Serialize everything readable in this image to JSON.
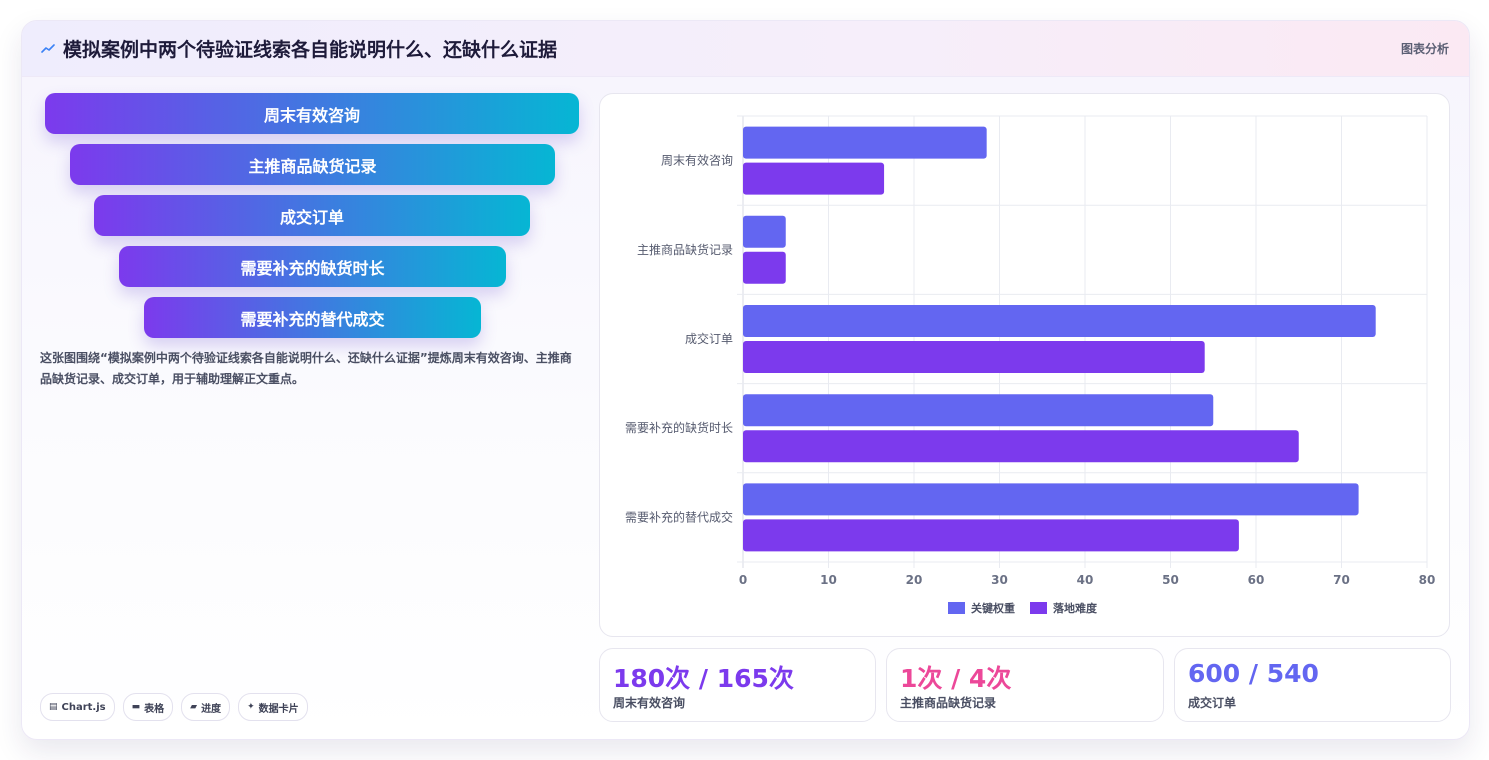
{
  "header": {
    "icon": "trend-line-icon",
    "title": "模拟案例中两个待验证线索各自能说明什么、还缺什么证据",
    "tag": "图表分析"
  },
  "funnel": {
    "items": [
      "周末有效咨询",
      "主推商品缺货记录",
      "成交订单",
      "需要补充的缺货时长",
      "需要补充的替代成交"
    ],
    "gradient": [
      "#7c3aed",
      "#06b6d4"
    ]
  },
  "caption": "这张图围绕“模拟案例中两个待验证线索各自能说明什么、还缺什么证据”提炼周末有效咨询、主推商品缺货记录、成交订单，用于辅助理解正文重点。",
  "badges": [
    {
      "icon": "chart-icon",
      "glyph": "▤",
      "label": "Chart.js"
    },
    {
      "icon": "table-icon",
      "glyph": "▬",
      "label": "表格"
    },
    {
      "icon": "progress-icon",
      "glyph": "▰",
      "label": "进度"
    },
    {
      "icon": "sparkle-icon",
      "glyph": "✦",
      "label": "数据卡片"
    }
  ],
  "chart_data": {
    "type": "bar",
    "orientation": "horizontal",
    "categories": [
      "周末有效咨询",
      "主推商品缺货记录",
      "成交订单",
      "需要补充的缺货时长",
      "需要补充的替代成交"
    ],
    "series": [
      {
        "name": "关键权重",
        "color": "#6366f1",
        "values": [
          28.5,
          5,
          74,
          55,
          72
        ]
      },
      {
        "name": "落地难度",
        "color": "#7c3aed",
        "values": [
          16.5,
          5,
          54,
          65,
          58
        ]
      }
    ],
    "xlim": [
      0,
      80
    ],
    "xticks": [
      0,
      10,
      20,
      30,
      40,
      50,
      60,
      70,
      80
    ],
    "grid": true,
    "legend": "bottom"
  },
  "stats": [
    {
      "value": "180次 / 165次",
      "label": "周末有效咨询",
      "color": "#7c3aed"
    },
    {
      "value": "1次 / 4次",
      "label": "主推商品缺货记录",
      "color": "#ec4899"
    },
    {
      "value": "600 / 540",
      "label": "成交订单",
      "color": "#6366f1"
    }
  ]
}
